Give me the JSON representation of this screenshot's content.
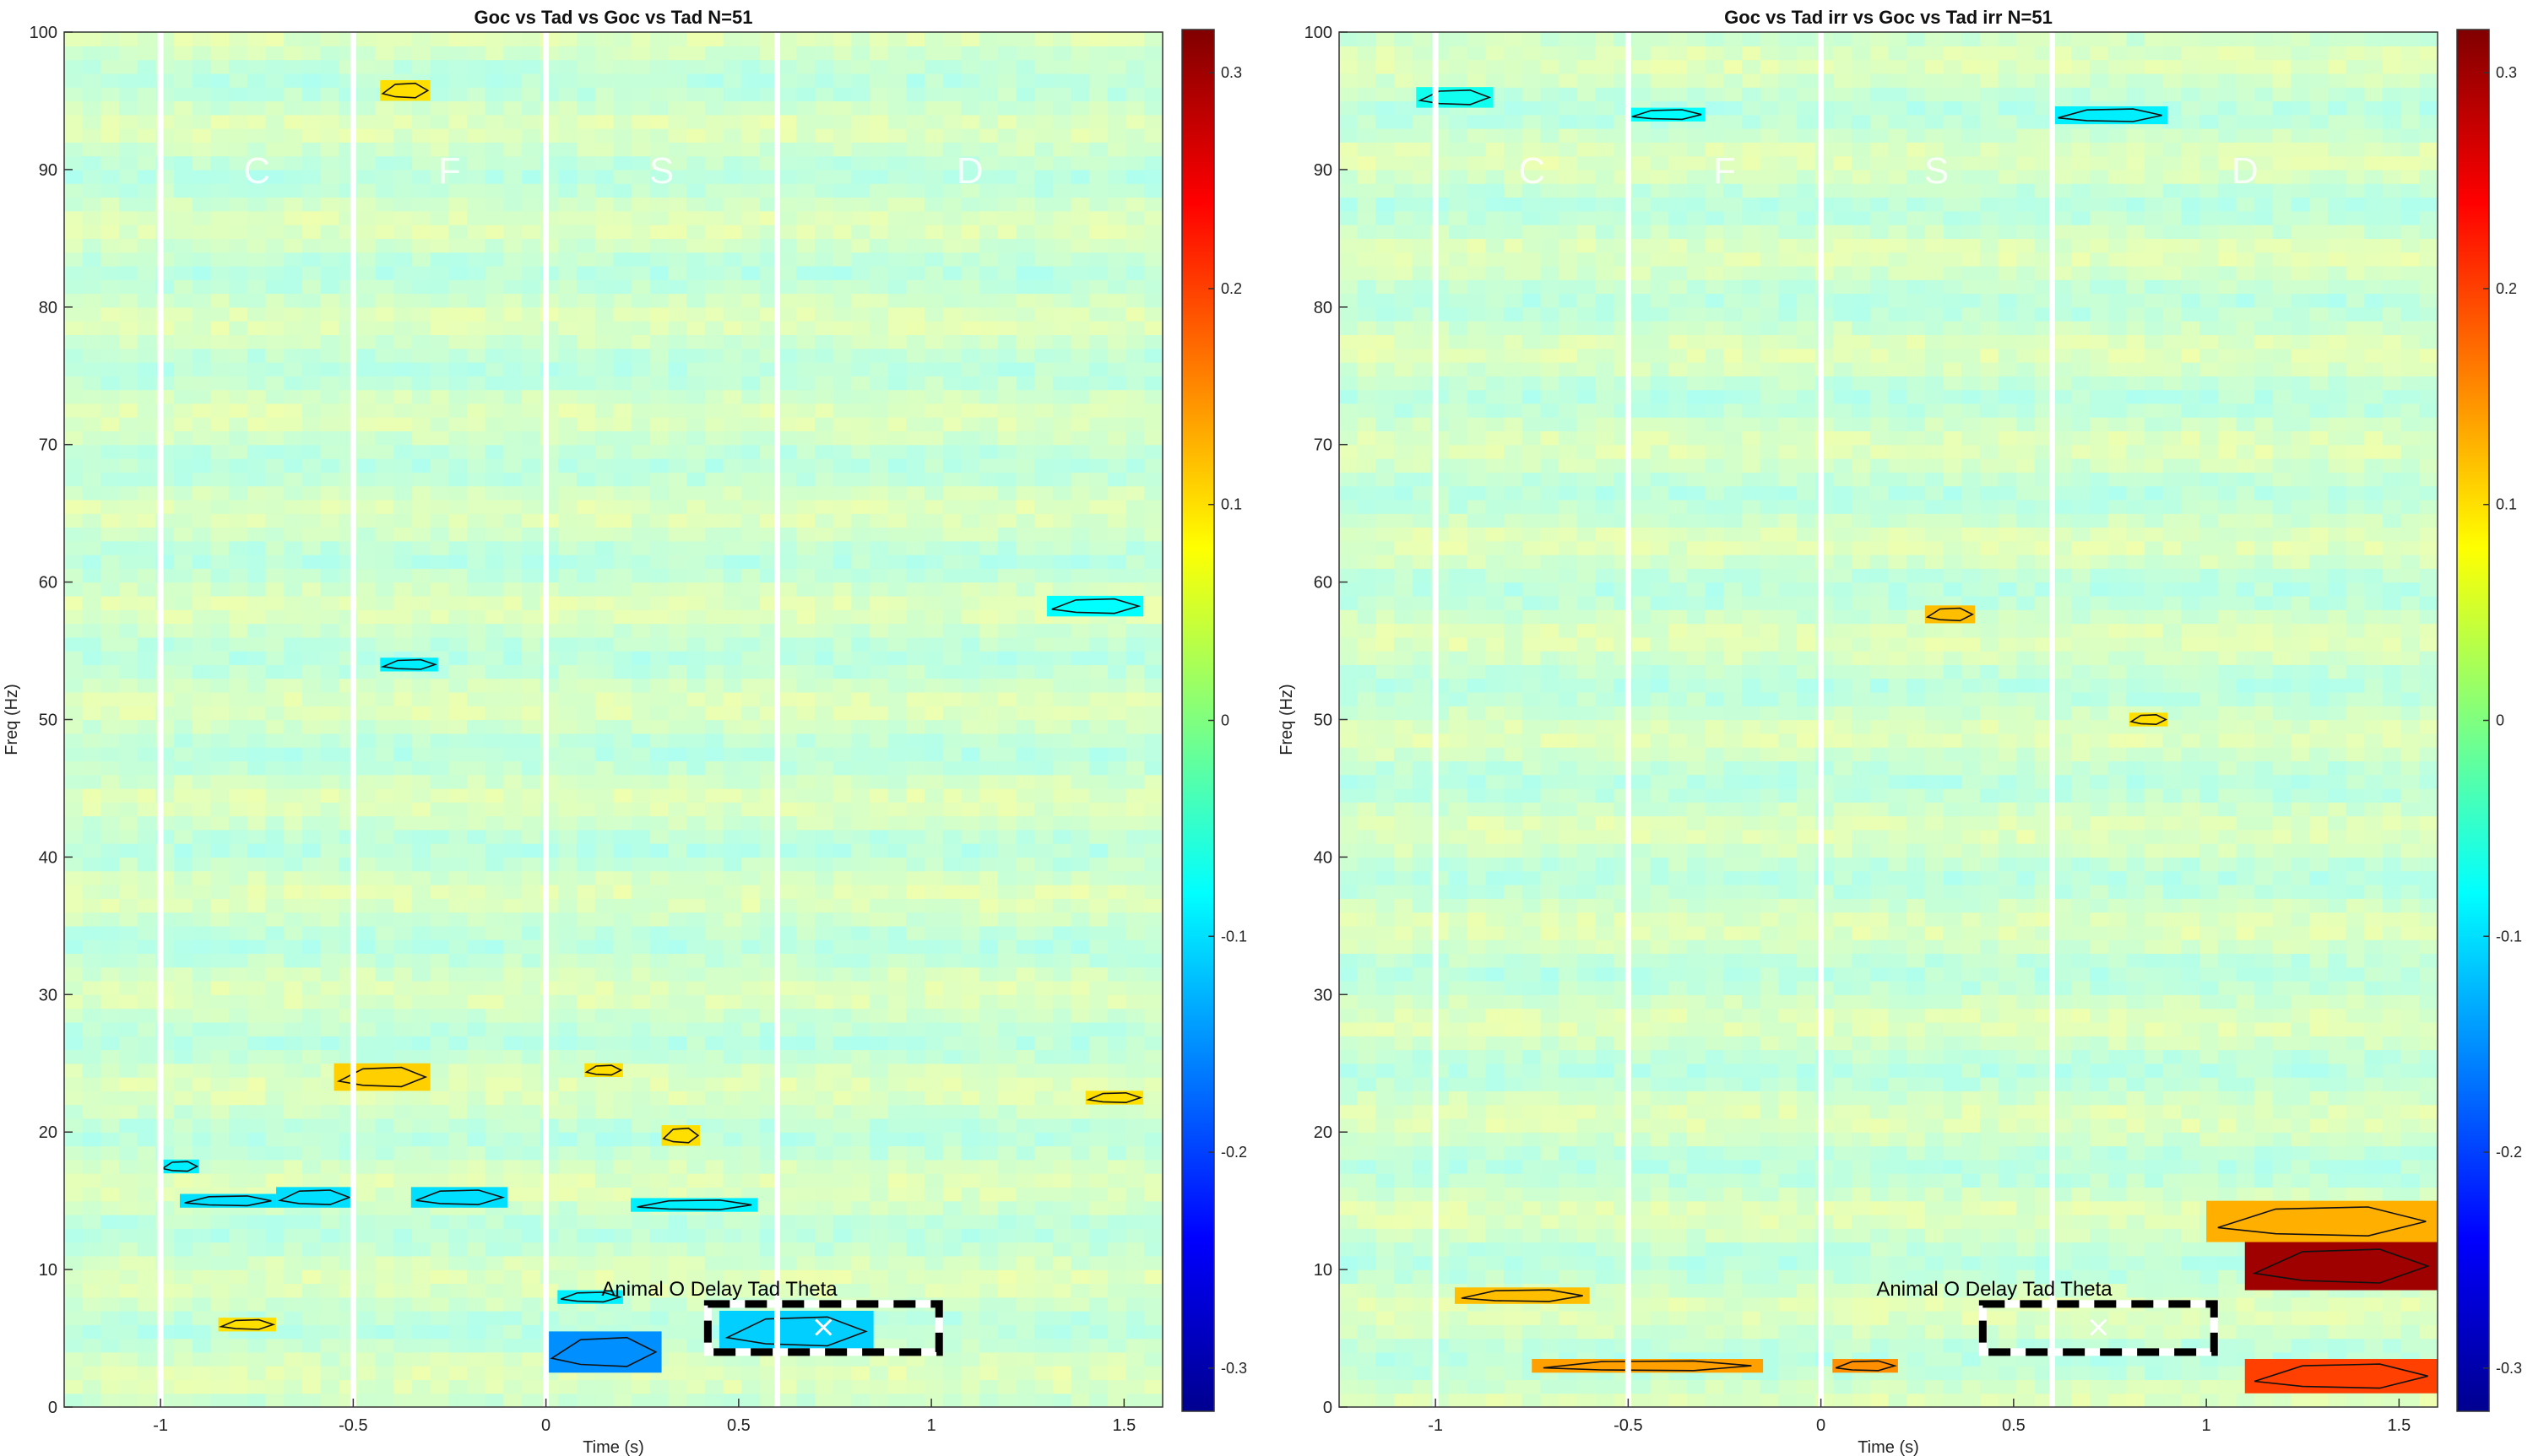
{
  "chart_data": [
    {
      "type": "heatmap",
      "title": "Goc vs Tad vs Goc vs Tad N=51",
      "xlabel": "Time (s)",
      "ylabel": "Freq (Hz)",
      "xlim": [
        -1.25,
        1.6
      ],
      "ylim": [
        0,
        100
      ],
      "xticks": [
        -1,
        -0.5,
        0,
        0.5,
        1,
        1.5
      ],
      "yticks": [
        0,
        10,
        20,
        30,
        40,
        50,
        60,
        70,
        80,
        90,
        100
      ],
      "xtick_labels": [
        "-1",
        "-0.5",
        "0",
        "0.5",
        "1",
        "1.5"
      ],
      "ytick_labels": [
        "0",
        "10",
        "20",
        "30",
        "40",
        "50",
        "60",
        "70",
        "80",
        "90",
        "100"
      ],
      "colorbar": {
        "range": [
          -0.32,
          0.32
        ],
        "ticks": [
          -0.3,
          -0.2,
          -0.1,
          0,
          0.1,
          0.2,
          0.3
        ],
        "tick_labels": [
          "-0.3",
          "-0.2",
          "-0.1",
          "0",
          "0.1",
          "0.2",
          "0.3"
        ]
      },
      "grid": false,
      "epoch_lines_s": [
        -1,
        -0.5,
        0,
        0.6
      ],
      "segment_labels": [
        {
          "text": "C",
          "t": -0.75,
          "f": 90
        },
        {
          "text": "F",
          "t": -0.25,
          "f": 90
        },
        {
          "text": "S",
          "t": 0.3,
          "f": 90
        },
        {
          "text": "D",
          "t": 1.1,
          "f": 90
        }
      ],
      "roi_box": {
        "label": "Animal O Delay Tad Theta",
        "t": [
          0.42,
          1.02
        ],
        "f": [
          4,
          7.5
        ],
        "center": [
          0.72,
          5.8
        ]
      },
      "clusters": [
        {
          "t": [
            -0.7,
            -0.5
          ],
          "f": [
            14.5,
            16
          ],
          "value": -0.1
        },
        {
          "t": [
            -0.95,
            -0.7
          ],
          "f": [
            14.5,
            15.5
          ],
          "value": -0.1
        },
        {
          "t": [
            -0.35,
            -0.1
          ],
          "f": [
            14.5,
            16
          ],
          "value": -0.1
        },
        {
          "t": [
            0.22,
            0.55
          ],
          "f": [
            14.2,
            15.2
          ],
          "value": -0.09
        },
        {
          "t": [
            0.0,
            0.3
          ],
          "f": [
            2.5,
            5.5
          ],
          "value": -0.15
        },
        {
          "t": [
            0.45,
            0.85
          ],
          "f": [
            4,
            7
          ],
          "value": -0.11
        },
        {
          "t": [
            1.3,
            1.55
          ],
          "f": [
            57.5,
            59
          ],
          "value": -0.08
        },
        {
          "t": [
            -0.55,
            -0.3
          ],
          "f": [
            23,
            25
          ],
          "value": 0.11
        },
        {
          "t": [
            0.1,
            0.2
          ],
          "f": [
            24,
            25
          ],
          "value": 0.1
        },
        {
          "t": [
            0.3,
            0.4
          ],
          "f": [
            19,
            20.5
          ],
          "value": 0.1
        },
        {
          "t": [
            1.4,
            1.55
          ],
          "f": [
            22,
            23
          ],
          "value": 0.1
        },
        {
          "t": [
            -0.85,
            -0.7
          ],
          "f": [
            5.5,
            6.5
          ],
          "value": 0.1
        },
        {
          "t": [
            -0.43,
            -0.3
          ],
          "f": [
            95,
            96.5
          ],
          "value": 0.1
        },
        {
          "t": [
            0.03,
            0.2
          ],
          "f": [
            7.5,
            8.5
          ],
          "value": -0.09
        },
        {
          "t": [
            -0.43,
            -0.28
          ],
          "f": [
            53.5,
            54.5
          ],
          "value": -0.09
        },
        {
          "t": [
            -1.0,
            -0.9
          ],
          "f": [
            17,
            18
          ],
          "value": -0.09
        }
      ]
    },
    {
      "type": "heatmap",
      "title": "Goc vs Tad irr vs Goc vs Tad irr N=51",
      "xlabel": "Time (s)",
      "ylabel": "Freq (Hz)",
      "xlim": [
        -1.25,
        1.6
      ],
      "ylim": [
        0,
        100
      ],
      "xticks": [
        -1,
        -0.5,
        0,
        0.5,
        1,
        1.5
      ],
      "yticks": [
        0,
        10,
        20,
        30,
        40,
        50,
        60,
        70,
        80,
        90,
        100
      ],
      "xtick_labels": [
        "-1",
        "-0.5",
        "0",
        "0.5",
        "1",
        "1.5"
      ],
      "ytick_labels": [
        "0",
        "10",
        "20",
        "30",
        "40",
        "50",
        "60",
        "70",
        "80",
        "90",
        "100"
      ],
      "colorbar": {
        "range": [
          -0.32,
          0.32
        ],
        "ticks": [
          -0.3,
          -0.2,
          -0.1,
          0,
          0.1,
          0.2,
          0.3
        ],
        "tick_labels": [
          "-0.3",
          "-0.2",
          "-0.1",
          "0",
          "0.1",
          "0.2",
          "0.3"
        ]
      },
      "grid": false,
      "epoch_lines_s": [
        -1,
        -0.5,
        0,
        0.6
      ],
      "segment_labels": [
        {
          "text": "C",
          "t": -0.75,
          "f": 90
        },
        {
          "text": "F",
          "t": -0.25,
          "f": 90
        },
        {
          "text": "S",
          "t": 0.3,
          "f": 90
        },
        {
          "text": "D",
          "t": 1.1,
          "f": 90
        }
      ],
      "roi_box": {
        "label": "Animal O Delay Tad Theta",
        "t": [
          0.42,
          1.02
        ],
        "f": [
          4,
          7.5
        ],
        "center": [
          0.72,
          5.8
        ]
      },
      "clusters": [
        {
          "t": [
            1.1,
            1.6
          ],
          "f": [
            8.5,
            12
          ],
          "value": 0.3
        },
        {
          "t": [
            1.0,
            1.6
          ],
          "f": [
            12,
            15
          ],
          "value": 0.13
        },
        {
          "t": [
            1.1,
            1.6
          ],
          "f": [
            1,
            3.5
          ],
          "value": 0.2
        },
        {
          "t": [
            -0.95,
            -0.6
          ],
          "f": [
            7.5,
            8.7
          ],
          "value": 0.12
        },
        {
          "t": [
            -0.75,
            -0.15
          ],
          "f": [
            2.5,
            3.5
          ],
          "value": 0.14
        },
        {
          "t": [
            0.03,
            0.2
          ],
          "f": [
            2.5,
            3.5
          ],
          "value": 0.15
        },
        {
          "t": [
            0.8,
            0.9
          ],
          "f": [
            49.5,
            50.5
          ],
          "value": 0.1
        },
        {
          "t": [
            0.27,
            0.4
          ],
          "f": [
            57,
            58.3
          ],
          "value": 0.12
        },
        {
          "t": [
            -0.5,
            -0.3
          ],
          "f": [
            93.5,
            94.5
          ],
          "value": -0.08
        },
        {
          "t": [
            0.6,
            0.9
          ],
          "f": [
            93.3,
            94.6
          ],
          "value": -0.09
        },
        {
          "t": [
            -1.05,
            -0.85
          ],
          "f": [
            94.5,
            96
          ],
          "value": -0.07
        }
      ]
    }
  ]
}
